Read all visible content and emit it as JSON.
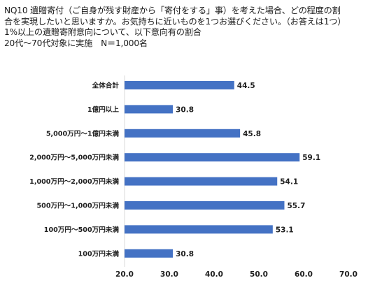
{
  "header": {
    "lines": [
      "NQ10 遺贈寄付（ご自身が残す財産から「寄付をする」事）を考えた場合、どの程度の割",
      "合を実現したいと思いますか。お気持ちに近いものを1つお選びください。（お答えは1つ）",
      "1%以上の遺贈寄附意向について、以下意向有の割合",
      "20代～70代対象に実施　N＝1,000名"
    ]
  },
  "chart_data": {
    "type": "bar",
    "orientation": "horizontal",
    "title": "NQ10 遺贈寄付（ご自身が残す財産から「寄付をする」事）を考えた場合、どの程度の割合を実現したいと思いますか。お気持ちに近いものを1つお選びください。（お答えは1つ）",
    "categories": [
      "全体合計",
      "1億円以上",
      "5,000万円～1億円未満",
      "2,000万円～5,000万円未満",
      "1,000万円～2,000万円未満",
      "500万円～1,000万円未満",
      "100万円～500万円未満",
      "100万円未満"
    ],
    "values": [
      44.5,
      30.8,
      45.8,
      59.1,
      54.1,
      55.7,
      53.1,
      30.8
    ],
    "value_labels": [
      "44.5",
      "30.8",
      "45.8",
      "59.1",
      "54.1",
      "55.7",
      "53.1",
      "30.8"
    ],
    "xlim": [
      20.0,
      70.0
    ],
    "xticks": [
      "20.0",
      "30.0",
      "40.0",
      "50.0",
      "60.0",
      "70.0"
    ],
    "xlabel": "",
    "ylabel": "",
    "grid": false,
    "legend": "none",
    "bar_color": "#4472C4"
  }
}
